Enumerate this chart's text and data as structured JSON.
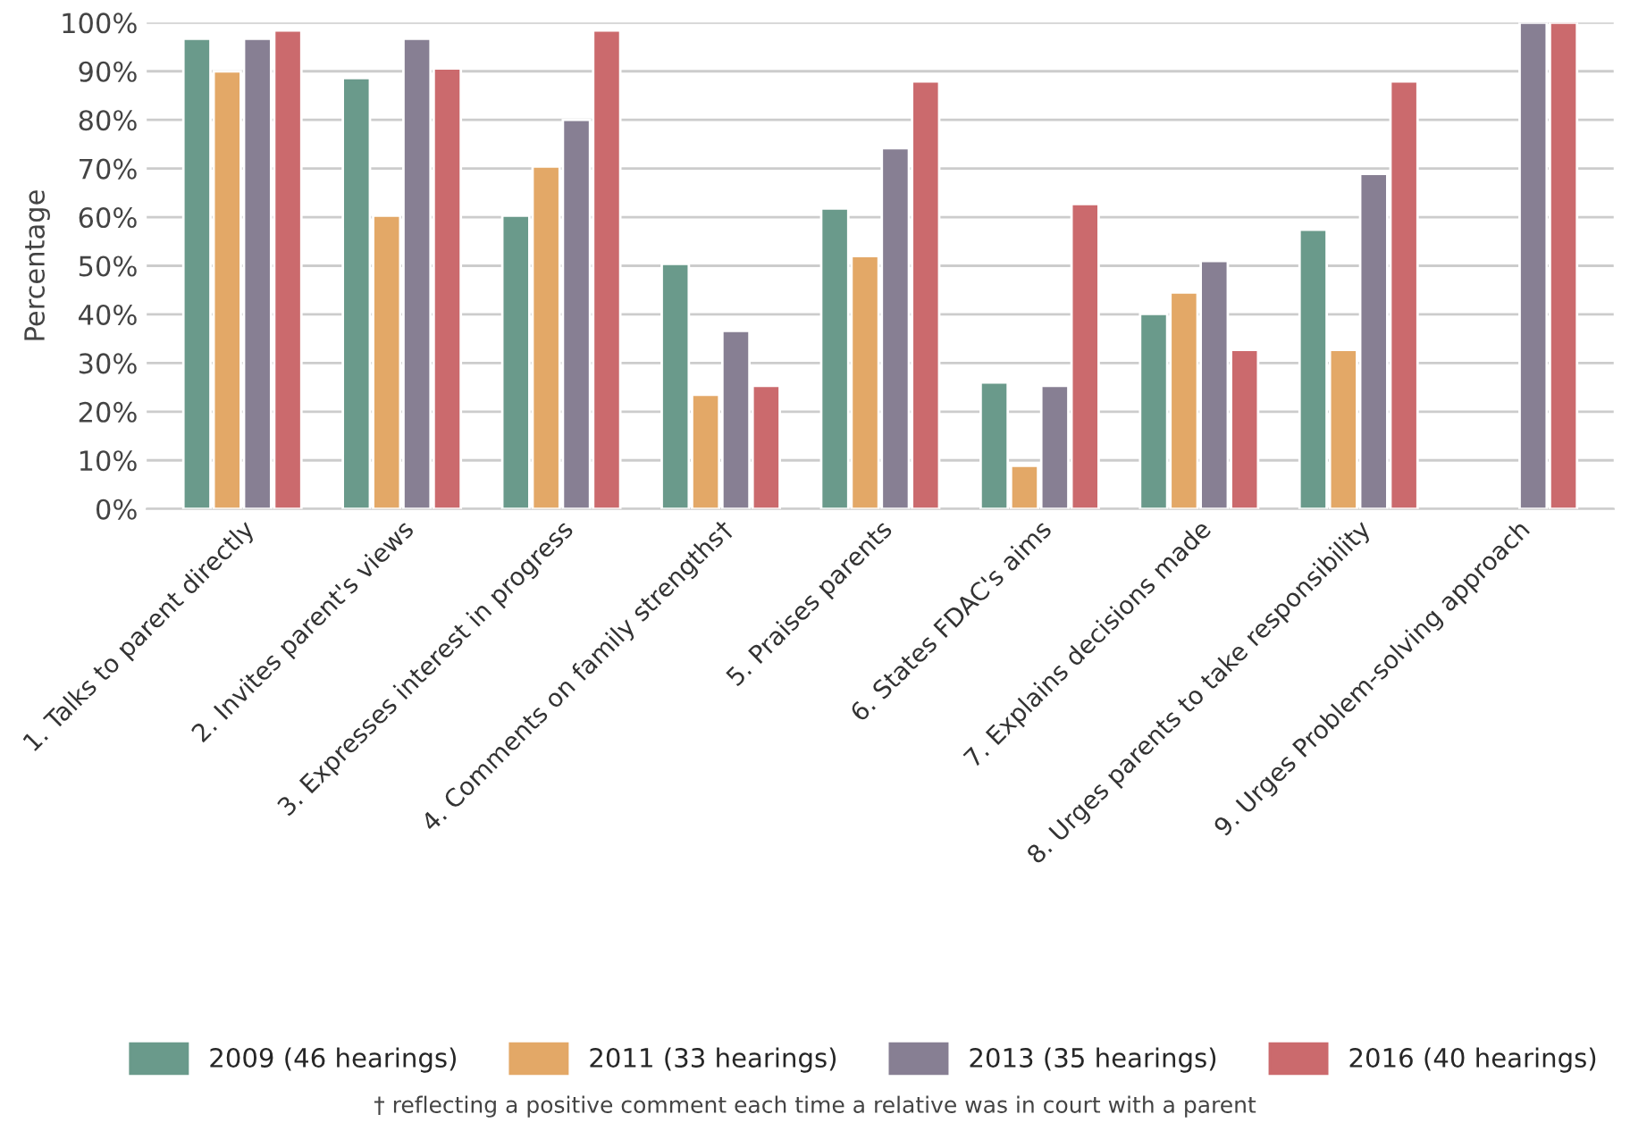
{
  "chart_data": {
    "type": "bar",
    "ylabel": "Percentage",
    "categories": [
      "1. Talks to parent directly",
      "2. Invites parent's views",
      "3. Expresses interest in progress",
      "4. Comments on family strengths†",
      "5. Praises parents",
      "6. States FDAC's aims",
      "7. Explains decisions made",
      "8. Urges parents to take responsibility",
      "9. Urges Problem-solving approach"
    ],
    "series": [
      {
        "name": "2009 (46 hearings)",
        "color": "#6a9a8b",
        "values": [
          96.7,
          88.6,
          60.3,
          50.4,
          61.8,
          26.0,
          40.1,
          57.4,
          null
        ]
      },
      {
        "name": "2011 (33 hearings)",
        "color": "#e3a867",
        "values": [
          90.0,
          60.3,
          70.4,
          23.5,
          52.0,
          8.9,
          44.5,
          32.7,
          null
        ]
      },
      {
        "name": "2013 (35 hearings)",
        "color": "#877f93",
        "values": [
          96.7,
          96.7,
          80.0,
          36.6,
          74.2,
          25.3,
          51.0,
          68.9,
          100
        ]
      },
      {
        "name": "2016 (40 hearings)",
        "color": "#cb6a6d",
        "values": [
          98.4,
          90.6,
          98.4,
          25.3,
          87.9,
          62.7,
          32.7,
          87.9,
          100
        ]
      }
    ],
    "ylim": [
      0,
      100
    ],
    "yticks": [
      {
        "value": 0,
        "label": "0%"
      },
      {
        "value": 10,
        "label": "10%"
      },
      {
        "value": 20,
        "label": "20%"
      },
      {
        "value": 30,
        "label": "30%"
      },
      {
        "value": 40,
        "label": "40%"
      },
      {
        "value": 50,
        "label": "50%"
      },
      {
        "value": 60,
        "label": "60%"
      },
      {
        "value": 70,
        "label": "70%"
      },
      {
        "value": 80,
        "label": "80%"
      },
      {
        "value": 90,
        "label": "90%"
      },
      {
        "value": 100,
        "label": "100%"
      }
    ],
    "grid": "y",
    "legend": "bottom",
    "annotations": [
      "† reflecting a positive comment each time a relative was in court with a parent"
    ]
  }
}
